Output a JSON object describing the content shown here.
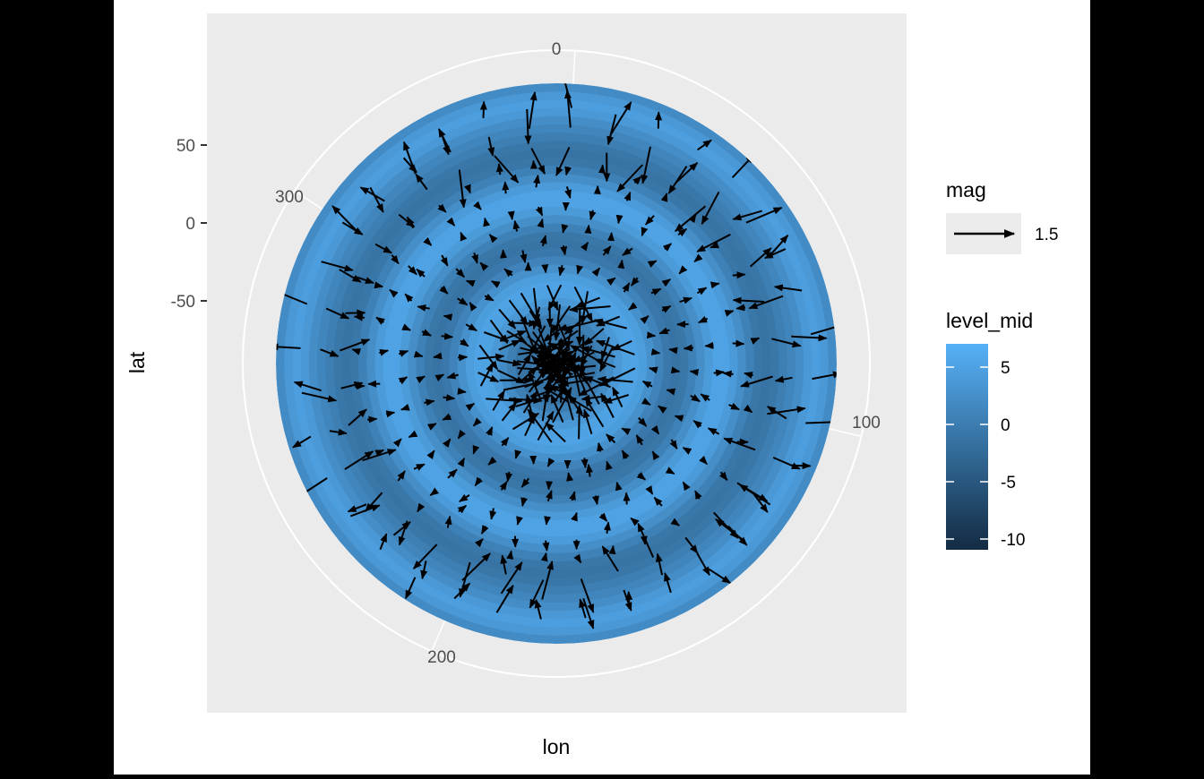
{
  "chart_data": {
    "type": "polar_contour_vector",
    "title": "",
    "xlabel": "lon",
    "ylabel": "lat",
    "coord": "polar",
    "lon_range": [
      0,
      360
    ],
    "lon_ticks": [
      0,
      100,
      200,
      300
    ],
    "lat_range": [
      -90,
      90
    ],
    "lat_ticks": [
      50,
      0,
      -50
    ],
    "fill_variable": "level_mid",
    "fill_range": [
      -12,
      7
    ],
    "fill_colors": {
      "low": "#132B43",
      "high": "#56B1F7"
    },
    "fill_ticks": [
      5,
      0,
      -5,
      -10
    ],
    "vector_variable": "mag",
    "vector_legend_value": 1.5,
    "grid": true,
    "legend_position": "right",
    "background_color": "#EBEBEB"
  },
  "labels": {
    "x_axis_title": "lon",
    "y_axis_title": "lat",
    "lon_tick_0": "0",
    "lon_tick_100": "100",
    "lon_tick_200": "200",
    "lon_tick_300": "300",
    "lat_tick_50": "50",
    "lat_tick_0": "0",
    "lat_tick_m50": "-50",
    "legend_mag_title": "mag",
    "legend_mag_value": "1.5",
    "legend_fill_title": "level_mid",
    "legend_fill_5": "5",
    "legend_fill_0": "0",
    "legend_fill_m5": "-5",
    "legend_fill_m10": "-10"
  }
}
